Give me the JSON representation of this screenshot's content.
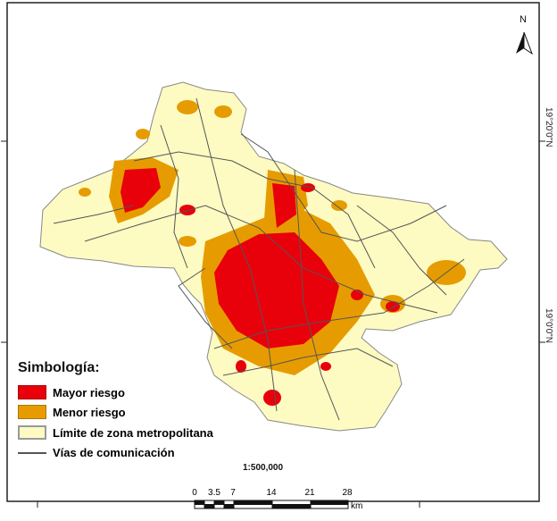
{
  "map": {
    "colors": {
      "mayor_riesgo": "#e8000b",
      "menor_riesgo": "#e69c00",
      "zona": "#fdfbc2",
      "vias": "#555555"
    },
    "north_label": "N",
    "lat_labels": [
      "19°20'0\"N",
      "19°0'0\"N"
    ],
    "legend": {
      "title": "Simbología:",
      "items": [
        {
          "label": "Mayor riesgo",
          "type": "fill",
          "color": "#e8000b"
        },
        {
          "label": "Menor riesgo",
          "type": "fill",
          "color": "#e69c00"
        },
        {
          "label": "Límite de zona metropolitana",
          "type": "fill",
          "color": "#fdfbc2"
        },
        {
          "label": "Vías de comunicación",
          "type": "line",
          "color": "#555555"
        }
      ]
    },
    "scale_text": "1:500,000",
    "scale_bar": {
      "ticks": [
        "0",
        "3.5",
        "7",
        "14",
        "21",
        "28"
      ],
      "unit": "km"
    }
  }
}
